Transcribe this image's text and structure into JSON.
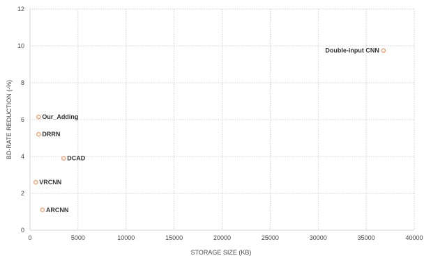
{
  "chart_data": {
    "type": "scatter",
    "title": "",
    "xlabel": "STORAGE SIZE (KB)",
    "ylabel": "BD-RATE REDUCTION (-%)",
    "xlim": [
      0,
      40000
    ],
    "ylim": [
      0,
      12
    ],
    "xticks": [
      0,
      5000,
      10000,
      15000,
      20000,
      25000,
      30000,
      35000,
      40000
    ],
    "yticks": [
      0,
      2,
      4,
      6,
      8,
      10,
      12
    ],
    "grid": true,
    "legend": "none",
    "marker_color": "#f0a070",
    "points": [
      {
        "label": "Double-input CNN",
        "x": 36800,
        "y": 9.75
      },
      {
        "label": "Our_Adding",
        "x": 900,
        "y": 6.15
      },
      {
        "label": "DRRN",
        "x": 900,
        "y": 5.2
      },
      {
        "label": "DCAD",
        "x": 3500,
        "y": 3.9
      },
      {
        "label": "VRCNN",
        "x": 600,
        "y": 2.6
      },
      {
        "label": "ARCNN",
        "x": 1300,
        "y": 1.1
      }
    ]
  }
}
